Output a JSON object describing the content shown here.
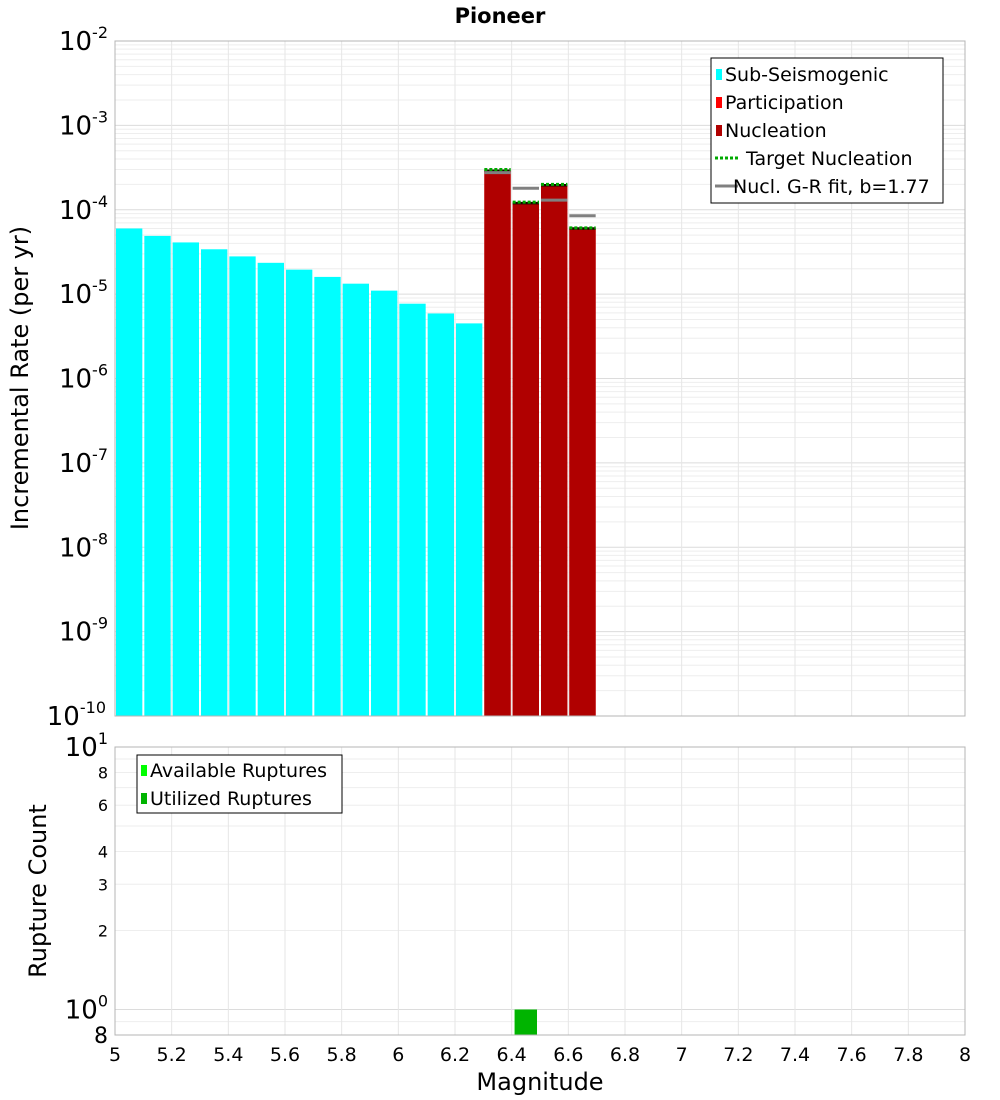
{
  "chart_data": [
    {
      "type": "bar",
      "title": "Pioneer",
      "ylabel": "Incremental Rate (per yr)",
      "xlabel": "",
      "x_range": [
        5,
        8
      ],
      "y_range": [
        1e-10,
        0.01
      ],
      "y_scale": "log",
      "y_tick_labels": [
        {
          "value": 0.01,
          "base": "10",
          "exp": "-2"
        },
        {
          "value": 0.001,
          "base": "10",
          "exp": "-3"
        },
        {
          "value": 0.0001,
          "base": "10",
          "exp": "-4"
        },
        {
          "value": 1e-05,
          "base": "10",
          "exp": "-5"
        },
        {
          "value": 1e-06,
          "base": "10",
          "exp": "-6"
        },
        {
          "value": 1e-07,
          "base": "10",
          "exp": "-7"
        },
        {
          "value": 1e-08,
          "base": "10",
          "exp": "-8"
        },
        {
          "value": 1e-09,
          "base": "10",
          "exp": "-9"
        },
        {
          "value": 1e-10,
          "base": "10",
          "exp": "-10"
        }
      ],
      "grid": true,
      "legend_position": "top-right",
      "bin_width": 0.1,
      "series": [
        {
          "name": "Sub-Seismogenic",
          "color": "#00ffff",
          "x": [
            5.05,
            5.15,
            5.25,
            5.35,
            5.45,
            5.55,
            5.65,
            5.75,
            5.85,
            5.95,
            6.05,
            6.15,
            6.25
          ],
          "values": [
            6e-05,
            4.9e-05,
            4.1e-05,
            3.4e-05,
            2.8e-05,
            2.35e-05,
            1.95e-05,
            1.6e-05,
            1.33e-05,
            1.1e-05,
            7.7e-06,
            5.9e-06,
            4.5e-06
          ]
        },
        {
          "name": "Participation",
          "color": "#ff0000",
          "x": [
            6.35,
            6.45,
            6.55,
            6.65
          ],
          "values": [
            0.00029,
            0.00012,
            0.000195,
            6e-05
          ]
        },
        {
          "name": "Nucleation",
          "color": "#b00000",
          "x": [
            6.35,
            6.45,
            6.55,
            6.65
          ],
          "values": [
            0.00029,
            0.00012,
            0.000195,
            6e-05
          ]
        },
        {
          "name": "Target Nucleation",
          "color": "#00aa00",
          "style": "dotted",
          "x": [
            6.35,
            6.45,
            6.55,
            6.65
          ],
          "values": [
            0.0003,
            0.000123,
            0.0002,
            6.1e-05
          ]
        },
        {
          "name": "Nucl. G-R fit, b=1.77",
          "color": "#808080",
          "style": "solid",
          "x": [
            6.35,
            6.45,
            6.55,
            6.65
          ],
          "values": [
            0.000275,
            0.00018,
            0.00013,
            8.5e-05
          ]
        }
      ]
    },
    {
      "type": "bar",
      "title": "",
      "ylabel": "Rupture Count",
      "xlabel": "Magnitude",
      "x_range": [
        5,
        8
      ],
      "x_ticks": [
        "5",
        "5.2",
        "5.4",
        "5.6",
        "5.8",
        "6",
        "6.2",
        "6.4",
        "6.6",
        "6.8",
        "7",
        "7.2",
        "7.4",
        "7.6",
        "7.8",
        "8"
      ],
      "y_range": [
        0.8,
        10
      ],
      "y_scale": "log",
      "y_major_labels": [
        {
          "value": 10,
          "base": "10",
          "exp": "1"
        },
        {
          "value": 1,
          "base": "10",
          "exp": "0"
        }
      ],
      "y_minor_labels": [
        "8",
        "6",
        "4",
        "3",
        "2",
        "8"
      ],
      "y_minor_values": [
        8,
        6,
        4,
        3,
        2,
        0.8
      ],
      "grid": true,
      "legend_position": "top-left",
      "bin_width": 0.1,
      "series": [
        {
          "name": "Available Ruptures",
          "color": "#00ff00",
          "x": [
            6.45
          ],
          "values": [
            1
          ]
        },
        {
          "name": "Utilized Ruptures",
          "color": "#00b400",
          "x": [
            6.45
          ],
          "values": [
            1
          ]
        }
      ]
    }
  ]
}
